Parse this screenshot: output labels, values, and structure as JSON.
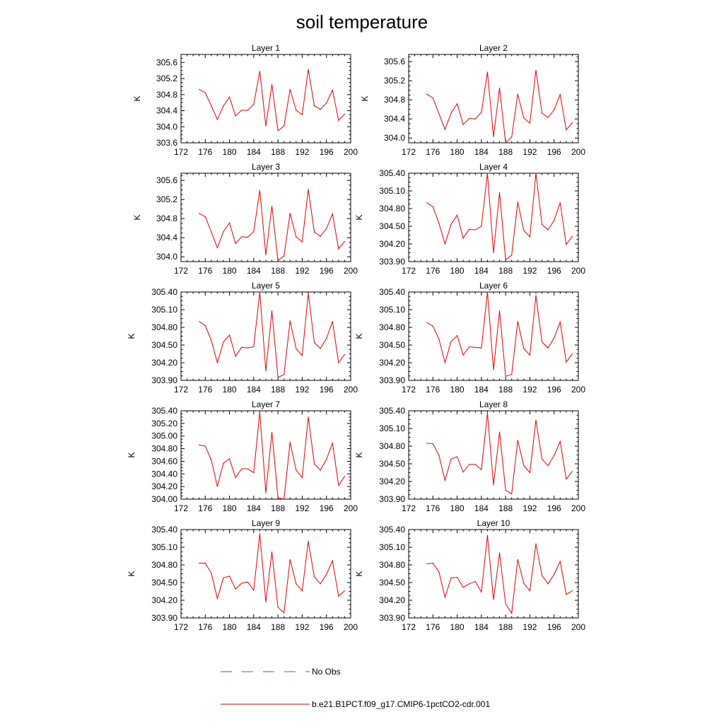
{
  "figure": {
    "title": "soil temperature",
    "legend": [
      {
        "label": "No Obs",
        "color": "#5a5aa8",
        "dash": true
      },
      {
        "label": "b.e21.B1PCT.f09_g17.CMIP6-1pctCO2-cdr.001",
        "color": "#e00000",
        "dash": false
      }
    ]
  },
  "chart_data": [
    {
      "type": "line",
      "title": "Layer 1",
      "ylabel": "K",
      "xlim": [
        172,
        200
      ],
      "ylim": [
        303.6,
        305.8
      ],
      "xticks": [
        "172",
        "176",
        "180",
        "184",
        "188",
        "192",
        "196",
        "200"
      ],
      "yticks": [
        "303.6",
        "304.0",
        "304.4",
        "304.8",
        "305.2",
        "305.6"
      ],
      "x": [
        175,
        176,
        177,
        178,
        179,
        180,
        181,
        182,
        183,
        184,
        185,
        186,
        187,
        188,
        189,
        190,
        191,
        192,
        193,
        194,
        195,
        196,
        197,
        198,
        199
      ],
      "series": [
        {
          "name": "b.e21.B1PCT.f09_g17.CMIP6-1pctCO2-cdr.001",
          "color": "#e00000",
          "values": [
            304.93,
            304.85,
            304.52,
            304.18,
            304.52,
            304.74,
            304.27,
            304.41,
            304.41,
            304.56,
            305.38,
            304.02,
            305.05,
            303.9,
            304.02,
            304.93,
            304.41,
            304.3,
            305.43,
            304.52,
            304.43,
            304.59,
            304.91,
            304.16,
            304.32
          ]
        }
      ]
    },
    {
      "type": "line",
      "title": "Layer 2",
      "ylabel": "K",
      "xlim": [
        172,
        200
      ],
      "ylim": [
        303.9,
        305.75
      ],
      "xticks": [
        "172",
        "176",
        "180",
        "184",
        "188",
        "192",
        "196",
        "200"
      ],
      "yticks": [
        "304.0",
        "304.4",
        "304.8",
        "305.2",
        "305.6"
      ],
      "x": [
        175,
        176,
        177,
        178,
        179,
        180,
        181,
        182,
        183,
        184,
        185,
        186,
        187,
        188,
        189,
        190,
        191,
        192,
        193,
        194,
        195,
        196,
        197,
        198,
        199
      ],
      "series": [
        {
          "name": "b.e21.B1PCT.f09_g17.CMIP6-1pctCO2-cdr.001",
          "color": "#e00000",
          "values": [
            304.92,
            304.84,
            304.51,
            304.18,
            304.52,
            304.72,
            304.28,
            304.41,
            304.4,
            304.54,
            305.38,
            304.03,
            305.05,
            303.9,
            304.02,
            304.92,
            304.42,
            304.31,
            305.42,
            304.52,
            304.43,
            304.59,
            304.91,
            304.17,
            304.32
          ]
        }
      ]
    },
    {
      "type": "line",
      "title": "Layer 3",
      "ylabel": "K",
      "xlim": [
        172,
        200
      ],
      "ylim": [
        303.9,
        305.75
      ],
      "xticks": [
        "172",
        "176",
        "180",
        "184",
        "188",
        "192",
        "196",
        "200"
      ],
      "yticks": [
        "304.0",
        "304.4",
        "304.8",
        "305.2",
        "305.6"
      ],
      "x": [
        175,
        176,
        177,
        178,
        179,
        180,
        181,
        182,
        183,
        184,
        185,
        186,
        187,
        188,
        189,
        190,
        191,
        192,
        193,
        194,
        195,
        196,
        197,
        198,
        199
      ],
      "series": [
        {
          "name": "b.e21.B1PCT.f09_g17.CMIP6-1pctCO2-cdr.001",
          "color": "#e00000",
          "values": [
            304.91,
            304.84,
            304.52,
            304.19,
            304.53,
            304.71,
            304.28,
            304.42,
            304.41,
            304.53,
            305.39,
            304.04,
            305.06,
            303.92,
            304.02,
            304.91,
            304.42,
            304.31,
            305.41,
            304.52,
            304.43,
            304.59,
            304.9,
            304.17,
            304.32
          ]
        }
      ]
    },
    {
      "type": "line",
      "title": "Layer 4",
      "ylabel": "K",
      "xlim": [
        172,
        200
      ],
      "ylim": [
        303.9,
        305.4
      ],
      "xticks": [
        "172",
        "176",
        "180",
        "184",
        "188",
        "192",
        "196",
        "200"
      ],
      "yticks": [
        "303.90",
        "304.20",
        "304.50",
        "304.80",
        "305.10",
        "305.40"
      ],
      "x": [
        175,
        176,
        177,
        178,
        179,
        180,
        181,
        182,
        183,
        184,
        185,
        186,
        187,
        188,
        189,
        190,
        191,
        192,
        193,
        194,
        195,
        196,
        197,
        198,
        199
      ],
      "series": [
        {
          "name": "b.e21.B1PCT.f09_g17.CMIP6-1pctCO2-cdr.001",
          "color": "#e00000",
          "values": [
            304.9,
            304.83,
            304.55,
            304.2,
            304.53,
            304.69,
            304.3,
            304.45,
            304.44,
            304.5,
            305.4,
            304.05,
            305.07,
            303.93,
            304.01,
            304.91,
            304.43,
            304.32,
            305.4,
            304.53,
            304.44,
            304.6,
            304.9,
            304.19,
            304.33
          ]
        }
      ]
    },
    {
      "type": "line",
      "title": "Layer 5",
      "ylabel": "K",
      "xlim": [
        172,
        200
      ],
      "ylim": [
        303.9,
        305.4
      ],
      "xticks": [
        "172",
        "176",
        "180",
        "184",
        "188",
        "192",
        "196",
        "200"
      ],
      "yticks": [
        "303.90",
        "304.20",
        "304.50",
        "304.80",
        "305.10",
        "305.40"
      ],
      "x": [
        175,
        176,
        177,
        178,
        179,
        180,
        181,
        182,
        183,
        184,
        185,
        186,
        187,
        188,
        189,
        190,
        191,
        192,
        193,
        194,
        195,
        196,
        197,
        198,
        199
      ],
      "series": [
        {
          "name": "b.e21.B1PCT.f09_g17.CMIP6-1pctCO2-cdr.001",
          "color": "#e00000",
          "values": [
            304.9,
            304.83,
            304.58,
            304.2,
            304.55,
            304.67,
            304.31,
            304.46,
            304.45,
            304.47,
            305.4,
            304.06,
            305.08,
            303.95,
            304.0,
            304.91,
            304.44,
            304.32,
            305.38,
            304.54,
            304.44,
            304.61,
            304.9,
            304.2,
            304.34
          ]
        }
      ]
    },
    {
      "type": "line",
      "title": "Layer 6",
      "ylabel": "K",
      "xlim": [
        172,
        200
      ],
      "ylim": [
        303.9,
        305.4
      ],
      "xticks": [
        "172",
        "176",
        "180",
        "184",
        "188",
        "192",
        "196",
        "200"
      ],
      "yticks": [
        "303.90",
        "304.20",
        "304.50",
        "304.80",
        "305.10",
        "305.40"
      ],
      "x": [
        175,
        176,
        177,
        178,
        179,
        180,
        181,
        182,
        183,
        184,
        185,
        186,
        187,
        188,
        189,
        190,
        191,
        192,
        193,
        194,
        195,
        196,
        197,
        198,
        199
      ],
      "series": [
        {
          "name": "b.e21.B1PCT.f09_g17.CMIP6-1pctCO2-cdr.001",
          "color": "#e00000",
          "values": [
            304.88,
            304.82,
            304.6,
            304.2,
            304.56,
            304.66,
            304.33,
            304.47,
            304.46,
            304.45,
            305.4,
            304.08,
            305.08,
            303.97,
            304.0,
            304.9,
            304.44,
            304.33,
            305.34,
            304.55,
            304.45,
            304.62,
            304.89,
            304.21,
            304.35
          ]
        }
      ]
    },
    {
      "type": "line",
      "title": "Layer 7",
      "ylabel": "K",
      "xlim": [
        172,
        200
      ],
      "ylim": [
        304.0,
        305.4
      ],
      "xticks": [
        "172",
        "176",
        "180",
        "184",
        "188",
        "192",
        "196",
        "200"
      ],
      "yticks": [
        "304.00",
        "304.20",
        "304.40",
        "304.60",
        "304.80",
        "305.00",
        "305.20",
        "305.40"
      ],
      "x": [
        175,
        176,
        177,
        178,
        179,
        180,
        181,
        182,
        183,
        184,
        185,
        186,
        187,
        188,
        189,
        190,
        191,
        192,
        193,
        194,
        195,
        196,
        197,
        198,
        199
      ],
      "series": [
        {
          "name": "b.e21.B1PCT.f09_g17.CMIP6-1pctCO2-cdr.001",
          "color": "#e00000",
          "values": [
            304.86,
            304.84,
            304.62,
            304.2,
            304.57,
            304.64,
            304.34,
            304.48,
            304.48,
            304.42,
            305.38,
            304.1,
            305.06,
            304.02,
            304.0,
            304.9,
            304.46,
            304.34,
            305.3,
            304.56,
            304.46,
            304.63,
            304.89,
            304.22,
            304.36
          ]
        }
      ]
    },
    {
      "type": "line",
      "title": "Layer 8",
      "ylabel": "K",
      "xlim": [
        172,
        200
      ],
      "ylim": [
        303.9,
        305.4
      ],
      "xticks": [
        "172",
        "176",
        "180",
        "184",
        "188",
        "192",
        "196",
        "200"
      ],
      "yticks": [
        "303.90",
        "304.20",
        "304.50",
        "304.80",
        "305.10",
        "305.40"
      ],
      "x": [
        175,
        176,
        177,
        178,
        179,
        180,
        181,
        182,
        183,
        184,
        185,
        186,
        187,
        188,
        189,
        190,
        191,
        192,
        193,
        194,
        195,
        196,
        197,
        198,
        199
      ],
      "series": [
        {
          "name": "b.e21.B1PCT.f09_g17.CMIP6-1pctCO2-cdr.001",
          "color": "#e00000",
          "values": [
            304.85,
            304.84,
            304.64,
            304.22,
            304.58,
            304.62,
            304.36,
            304.49,
            304.49,
            304.4,
            305.36,
            304.14,
            305.04,
            304.05,
            303.99,
            304.9,
            304.47,
            304.35,
            305.24,
            304.58,
            304.47,
            304.64,
            304.88,
            304.24,
            304.37
          ]
        }
      ]
    },
    {
      "type": "line",
      "title": "Layer 9",
      "ylabel": "K",
      "xlim": [
        172,
        200
      ],
      "ylim": [
        303.9,
        305.4
      ],
      "xticks": [
        "172",
        "176",
        "180",
        "184",
        "188",
        "192",
        "196",
        "200"
      ],
      "yticks": [
        "303.90",
        "304.20",
        "304.50",
        "304.80",
        "305.10",
        "305.40"
      ],
      "x": [
        175,
        176,
        177,
        178,
        179,
        180,
        181,
        182,
        183,
        184,
        185,
        186,
        187,
        188,
        189,
        190,
        191,
        192,
        193,
        194,
        195,
        196,
        197,
        198,
        199
      ],
      "series": [
        {
          "name": "b.e21.B1PCT.f09_g17.CMIP6-1pctCO2-cdr.001",
          "color": "#e00000",
          "values": [
            304.83,
            304.83,
            304.66,
            304.23,
            304.58,
            304.61,
            304.39,
            304.49,
            304.51,
            304.37,
            305.33,
            304.17,
            305.02,
            304.08,
            303.99,
            304.89,
            304.48,
            304.36,
            305.2,
            304.6,
            304.48,
            304.64,
            304.87,
            304.27,
            304.36
          ]
        }
      ]
    },
    {
      "type": "line",
      "title": "Layer 10",
      "ylabel": "K",
      "xlim": [
        172,
        200
      ],
      "ylim": [
        303.9,
        305.4
      ],
      "xticks": [
        "172",
        "176",
        "180",
        "184",
        "188",
        "192",
        "196",
        "200"
      ],
      "yticks": [
        "303.90",
        "304.20",
        "304.50",
        "304.80",
        "305.10",
        "305.40"
      ],
      "x": [
        175,
        176,
        177,
        178,
        179,
        180,
        181,
        182,
        183,
        184,
        185,
        186,
        187,
        188,
        189,
        190,
        191,
        192,
        193,
        194,
        195,
        196,
        197,
        198,
        199
      ],
      "series": [
        {
          "name": "b.e21.B1PCT.f09_g17.CMIP6-1pctCO2-cdr.001",
          "color": "#e00000",
          "values": [
            304.82,
            304.83,
            304.68,
            304.25,
            304.58,
            304.59,
            304.42,
            304.48,
            304.52,
            304.34,
            305.3,
            304.21,
            305.0,
            304.14,
            303.98,
            304.89,
            304.49,
            304.36,
            305.16,
            304.62,
            304.48,
            304.64,
            304.86,
            304.3,
            304.36
          ]
        }
      ]
    }
  ]
}
